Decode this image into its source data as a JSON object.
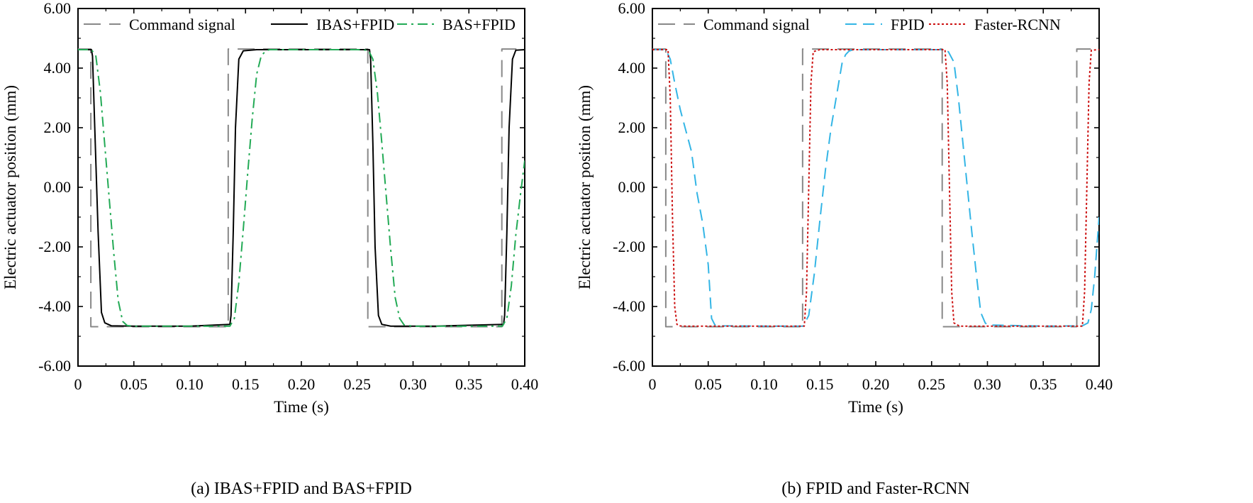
{
  "chart_data": [
    {
      "id": "a",
      "type": "line",
      "caption": "(a) IBAS+FPID and BAS+FPID",
      "xlabel": "Time (s)",
      "ylabel": "Electric actuator position (mm)",
      "xlim": [
        0,
        0.4
      ],
      "ylim": [
        -6.0,
        6.0
      ],
      "xticks": [
        0,
        0.05,
        0.1,
        0.15,
        0.2,
        0.25,
        0.3,
        0.35,
        0.4
      ],
      "xtick_labels": [
        "0",
        "0.05",
        "0.10",
        "0.15",
        "0.20",
        "0.25",
        "0.30",
        "0.35",
        "0.40"
      ],
      "yticks": [
        6.0,
        4.0,
        2.0,
        0.0,
        -2.0,
        -4.0,
        -6.0
      ],
      "ytick_labels": [
        "6.00",
        "4.00",
        "2.00",
        "0.00",
        "-2.00",
        "-4.00",
        "-6.00"
      ],
      "legend_position": "top",
      "series": [
        {
          "name": "Command signal",
          "color": "#888888",
          "dash": "long-dash",
          "x": [
            0,
            0.0115,
            0.0115,
            0.1345,
            0.1345,
            0.2595,
            0.2595,
            0.3795,
            0.3795,
            0.4
          ],
          "y": [
            4.64,
            4.64,
            -4.68,
            -4.68,
            4.64,
            4.64,
            -4.68,
            -4.68,
            4.64,
            4.64
          ]
        },
        {
          "name": "IBAS+FPID",
          "color": "#000000",
          "dash": "solid",
          "x": [
            0,
            0.012,
            0.013,
            0.015,
            0.018,
            0.021,
            0.024,
            0.03,
            0.05,
            0.1,
            0.136,
            0.137,
            0.139,
            0.141,
            0.144,
            0.148,
            0.16,
            0.2,
            0.261,
            0.262,
            0.264,
            0.266,
            0.269,
            0.272,
            0.28,
            0.32,
            0.381,
            0.382,
            0.384,
            0.386,
            0.389,
            0.392,
            0.4
          ],
          "y": [
            4.62,
            4.62,
            4.4,
            2.0,
            -1.5,
            -4.2,
            -4.55,
            -4.65,
            -4.66,
            -4.66,
            -4.6,
            -4.3,
            -1.5,
            2.0,
            4.3,
            4.58,
            4.62,
            4.62,
            4.62,
            4.3,
            1.5,
            -2.0,
            -4.3,
            -4.6,
            -4.66,
            -4.66,
            -4.6,
            -4.3,
            -1.5,
            2.0,
            4.3,
            4.6,
            4.62
          ]
        },
        {
          "name": "BAS+FPID",
          "color": "#22AA55",
          "dash": "dash-dot",
          "x": [
            0,
            0.012,
            0.016,
            0.02,
            0.024,
            0.028,
            0.032,
            0.036,
            0.04,
            0.044,
            0.05,
            0.1,
            0.136,
            0.14,
            0.144,
            0.148,
            0.152,
            0.156,
            0.16,
            0.164,
            0.168,
            0.172,
            0.18,
            0.2,
            0.25,
            0.26,
            0.264,
            0.268,
            0.272,
            0.276,
            0.28,
            0.284,
            0.288,
            0.292,
            0.3,
            0.33,
            0.38,
            0.384,
            0.388,
            0.392,
            0.396,
            0.4
          ],
          "y": [
            4.62,
            4.62,
            4.4,
            3.2,
            1.4,
            -0.4,
            -2.2,
            -3.8,
            -4.5,
            -4.64,
            -4.66,
            -4.66,
            -4.66,
            -4.4,
            -3.2,
            -1.4,
            0.5,
            2.3,
            3.8,
            4.4,
            4.58,
            4.62,
            4.62,
            4.62,
            4.62,
            4.6,
            4.3,
            3.2,
            1.5,
            -0.3,
            -2.1,
            -3.7,
            -4.4,
            -4.62,
            -4.66,
            -4.66,
            -4.66,
            -4.4,
            -3.3,
            -1.6,
            -0.3,
            0.9
          ]
        }
      ]
    },
    {
      "id": "b",
      "type": "line",
      "caption": "(b) FPID and Faster-RCNN",
      "xlabel": "Time (s)",
      "ylabel": "Electric actuator position (mm)",
      "xlim": [
        0,
        0.4
      ],
      "ylim": [
        -6.0,
        6.0
      ],
      "xticks": [
        0,
        0.05,
        0.1,
        0.15,
        0.2,
        0.25,
        0.3,
        0.35,
        0.4
      ],
      "xtick_labels": [
        "0",
        "0.05",
        "0.10",
        "0.15",
        "0.20",
        "0.25",
        "0.30",
        "0.35",
        "0.40"
      ],
      "yticks": [
        6.0,
        4.0,
        2.0,
        0.0,
        -2.0,
        -4.0,
        -6.0
      ],
      "ytick_labels": [
        "6.00",
        "4.00",
        "2.00",
        "0.00",
        "-2.00",
        "-4.00",
        "-6.00"
      ],
      "legend_position": "top",
      "series": [
        {
          "name": "Command signal",
          "color": "#888888",
          "dash": "long-dash",
          "x": [
            0,
            0.012,
            0.012,
            0.1345,
            0.1345,
            0.2595,
            0.2595,
            0.38,
            0.38,
            0.4
          ],
          "y": [
            4.64,
            4.64,
            -4.68,
            -4.68,
            4.64,
            4.64,
            -4.68,
            -4.68,
            4.64,
            4.64
          ]
        },
        {
          "name": "FPID",
          "color": "#33B5E5",
          "dash": "dashed",
          "x": [
            0,
            0.012,
            0.016,
            0.02,
            0.025,
            0.03,
            0.035,
            0.04,
            0.045,
            0.05,
            0.053,
            0.056,
            0.06,
            0.1,
            0.135,
            0.14,
            0.145,
            0.15,
            0.155,
            0.16,
            0.165,
            0.17,
            0.173,
            0.176,
            0.18,
            0.2,
            0.26,
            0.265,
            0.27,
            0.274,
            0.278,
            0.282,
            0.286,
            0.29,
            0.294,
            0.298,
            0.3,
            0.35,
            0.385,
            0.39,
            0.393,
            0.396,
            0.4
          ],
          "y": [
            4.62,
            4.62,
            4.3,
            3.5,
            2.6,
            1.9,
            1.2,
            -0.2,
            -1.2,
            -2.6,
            -4.4,
            -4.62,
            -4.65,
            -4.66,
            -4.66,
            -4.3,
            -2.9,
            -1.1,
            0.6,
            2.0,
            3.1,
            4.2,
            4.45,
            4.57,
            4.62,
            4.62,
            4.62,
            4.55,
            4.2,
            3.0,
            1.5,
            0.0,
            -1.5,
            -2.9,
            -4.2,
            -4.55,
            -4.62,
            -4.66,
            -4.65,
            -4.55,
            -4.1,
            -3.0,
            -1.0
          ]
        },
        {
          "name": "Faster-RCNN",
          "color": "#CC1111",
          "dash": "dotted",
          "x": [
            0,
            0.014,
            0.016,
            0.018,
            0.02,
            0.022,
            0.024,
            0.03,
            0.1,
            0.136,
            0.138,
            0.14,
            0.142,
            0.144,
            0.15,
            0.2,
            0.262,
            0.264,
            0.266,
            0.268,
            0.27,
            0.275,
            0.33,
            0.385,
            0.387,
            0.389,
            0.391,
            0.393,
            0.4
          ],
          "y": [
            4.62,
            4.62,
            3.0,
            -1.0,
            -4.0,
            -4.6,
            -4.65,
            -4.66,
            -4.66,
            -4.66,
            -3.5,
            0.0,
            3.5,
            4.55,
            4.62,
            4.62,
            4.62,
            3.5,
            0.0,
            -3.5,
            -4.55,
            -4.66,
            -4.66,
            -4.66,
            -3.5,
            0.0,
            3.5,
            4.6,
            4.62
          ]
        }
      ]
    }
  ]
}
